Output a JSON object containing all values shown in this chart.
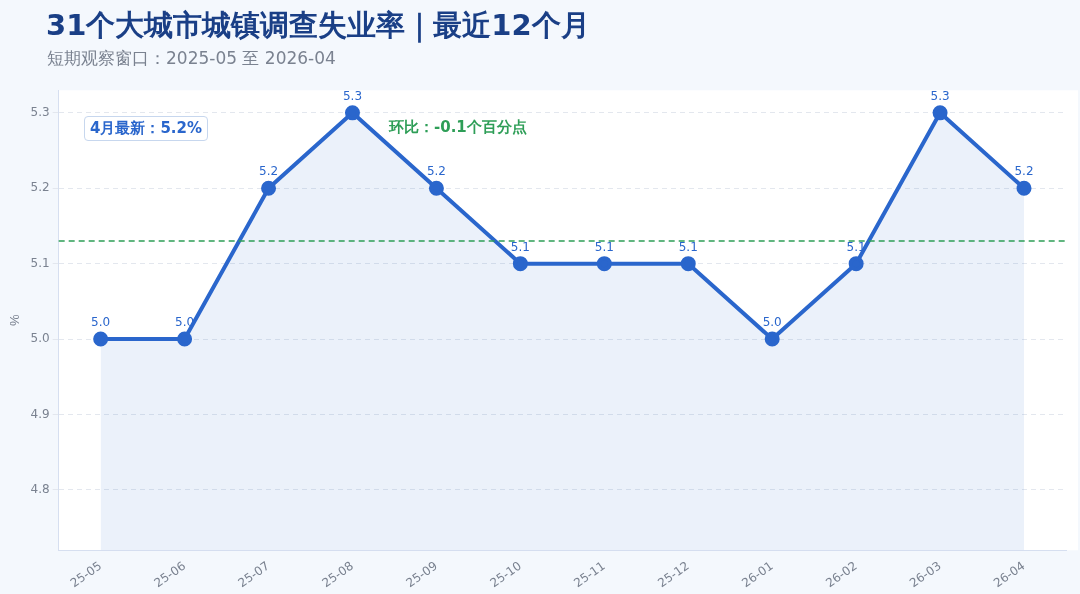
{
  "chart_data": {
    "type": "area",
    "title": "31个大城市城镇调查失业率｜最近12个月",
    "subtitle": "短期观察窗口：2025-05 至 2026-04",
    "ylabel": "%",
    "categories": [
      "25-05",
      "25-06",
      "25-07",
      "25-08",
      "25-09",
      "25-10",
      "25-11",
      "25-12",
      "26-01",
      "26-02",
      "26-03",
      "26-04"
    ],
    "series": [
      {
        "color": "#2a66cc",
        "values": [
          5.0,
          5.0,
          5.2,
          5.3,
          5.2,
          5.1,
          5.1,
          5.1,
          5.0,
          5.1,
          5.3,
          5.2
        ],
        "value_labels": [
          "5.0",
          "5.0",
          "5.2",
          "5.3",
          "5.2",
          "5.1",
          "5.1",
          "5.1",
          "5.0",
          "5.1",
          "5.3",
          "5.2"
        ]
      }
    ],
    "ylim": [
      4.72,
      5.33
    ],
    "yticks": [
      {
        "value": 4.8,
        "label": "4.8"
      },
      {
        "value": 4.9,
        "label": "4.9"
      },
      {
        "value": 5.0,
        "label": "5.0"
      },
      {
        "value": 5.1,
        "label": "5.1"
      },
      {
        "value": 5.2,
        "label": "5.2"
      },
      {
        "value": 5.3,
        "label": "5.3"
      }
    ],
    "ref_lines": [
      {
        "axis": "y",
        "value": 5.13,
        "color": "#2e9e57",
        "line_style": "dashed"
      }
    ],
    "annotations": [
      "4月最新：5.2%",
      "环比：-0.1个百分点"
    ],
    "grid": "y",
    "legend": false,
    "marker": "circle",
    "line_style": "solid"
  }
}
